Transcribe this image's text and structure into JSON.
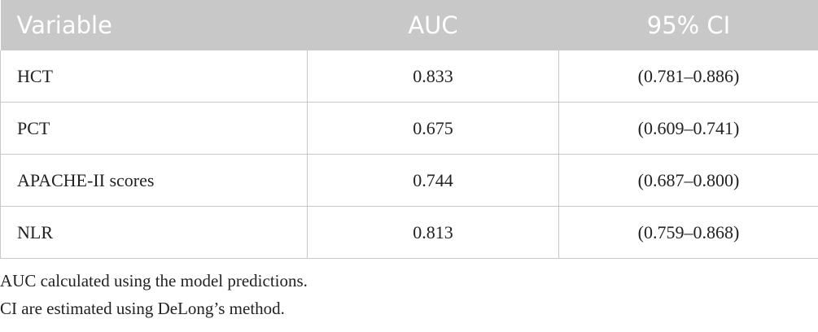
{
  "table": {
    "header": [
      "Variable",
      "AUC",
      "95% CI"
    ],
    "rows": [
      [
        "HCT",
        "0.833",
        "(0.781–0.886)"
      ],
      [
        "PCT",
        "0.675",
        "(0.609–0.741)"
      ],
      [
        "APACHE-II scores",
        "0.744",
        "(0.687–0.800)"
      ],
      [
        "NLR",
        "0.813",
        "(0.759–0.868)"
      ]
    ]
  },
  "footnotes": [
    "AUC calculated using the model predictions.",
    "CI are estimated using DeLong’s method."
  ]
}
